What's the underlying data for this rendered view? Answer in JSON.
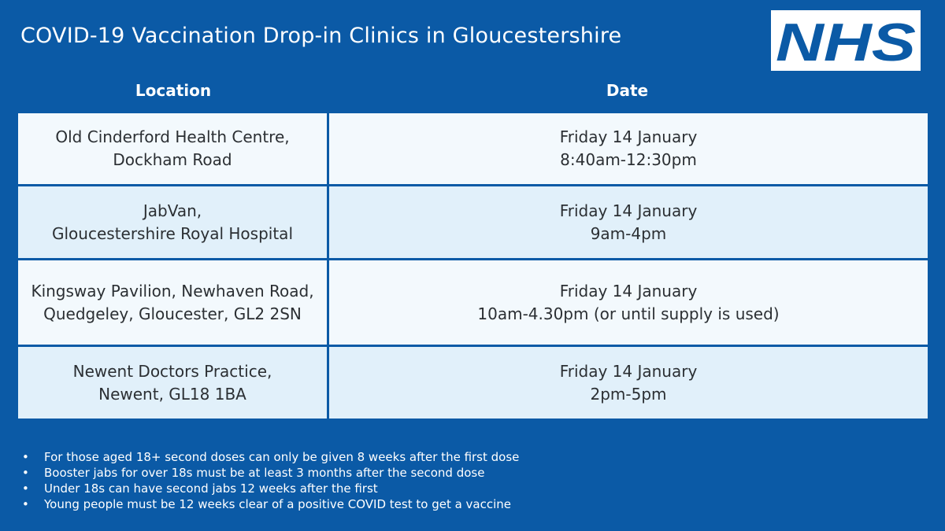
{
  "title": "COVID-19 Vaccination Drop-in Clinics in Gloucestershire",
  "logo": {
    "text": "NHS",
    "background": "#ffffff",
    "text_color": "#0b5aa6"
  },
  "colors": {
    "background": "#0b5aa6",
    "row_light": "#f3f9fd",
    "row_tint": "#e1f0fa",
    "cell_text": "#2b2f33"
  },
  "table": {
    "headers": {
      "location": "Location",
      "date": "Date"
    },
    "rows": [
      {
        "location": [
          "Old Cinderford Health Centre,",
          "Dockham Road"
        ],
        "date": [
          "Friday 14 January",
          "8:40am-12:30pm"
        ]
      },
      {
        "location": [
          "JabVan,",
          "Gloucestershire Royal Hospital"
        ],
        "date": [
          "Friday 14 January",
          "9am-4pm"
        ]
      },
      {
        "location": [
          "Kingsway Pavilion, Newhaven Road,",
          "Quedgeley, Gloucester, GL2 2SN"
        ],
        "date": [
          "Friday 14 January",
          "10am-4.30pm (or until supply is used)"
        ]
      },
      {
        "location": [
          "Newent Doctors Practice,",
          "Newent, GL18 1BA"
        ],
        "date": [
          "Friday 14 January",
          "2pm-5pm"
        ]
      }
    ]
  },
  "notes": {
    "bullet": "•",
    "items": [
      "For those aged 18+ second doses can only be given 8 weeks after the first dose",
      "Booster jabs for over 18s must be at least 3 months after the second dose",
      "Under 18s can have second jabs 12 weeks after the first",
      "Young people must be 12 weeks clear of a positive COVID test to get a vaccine"
    ]
  }
}
